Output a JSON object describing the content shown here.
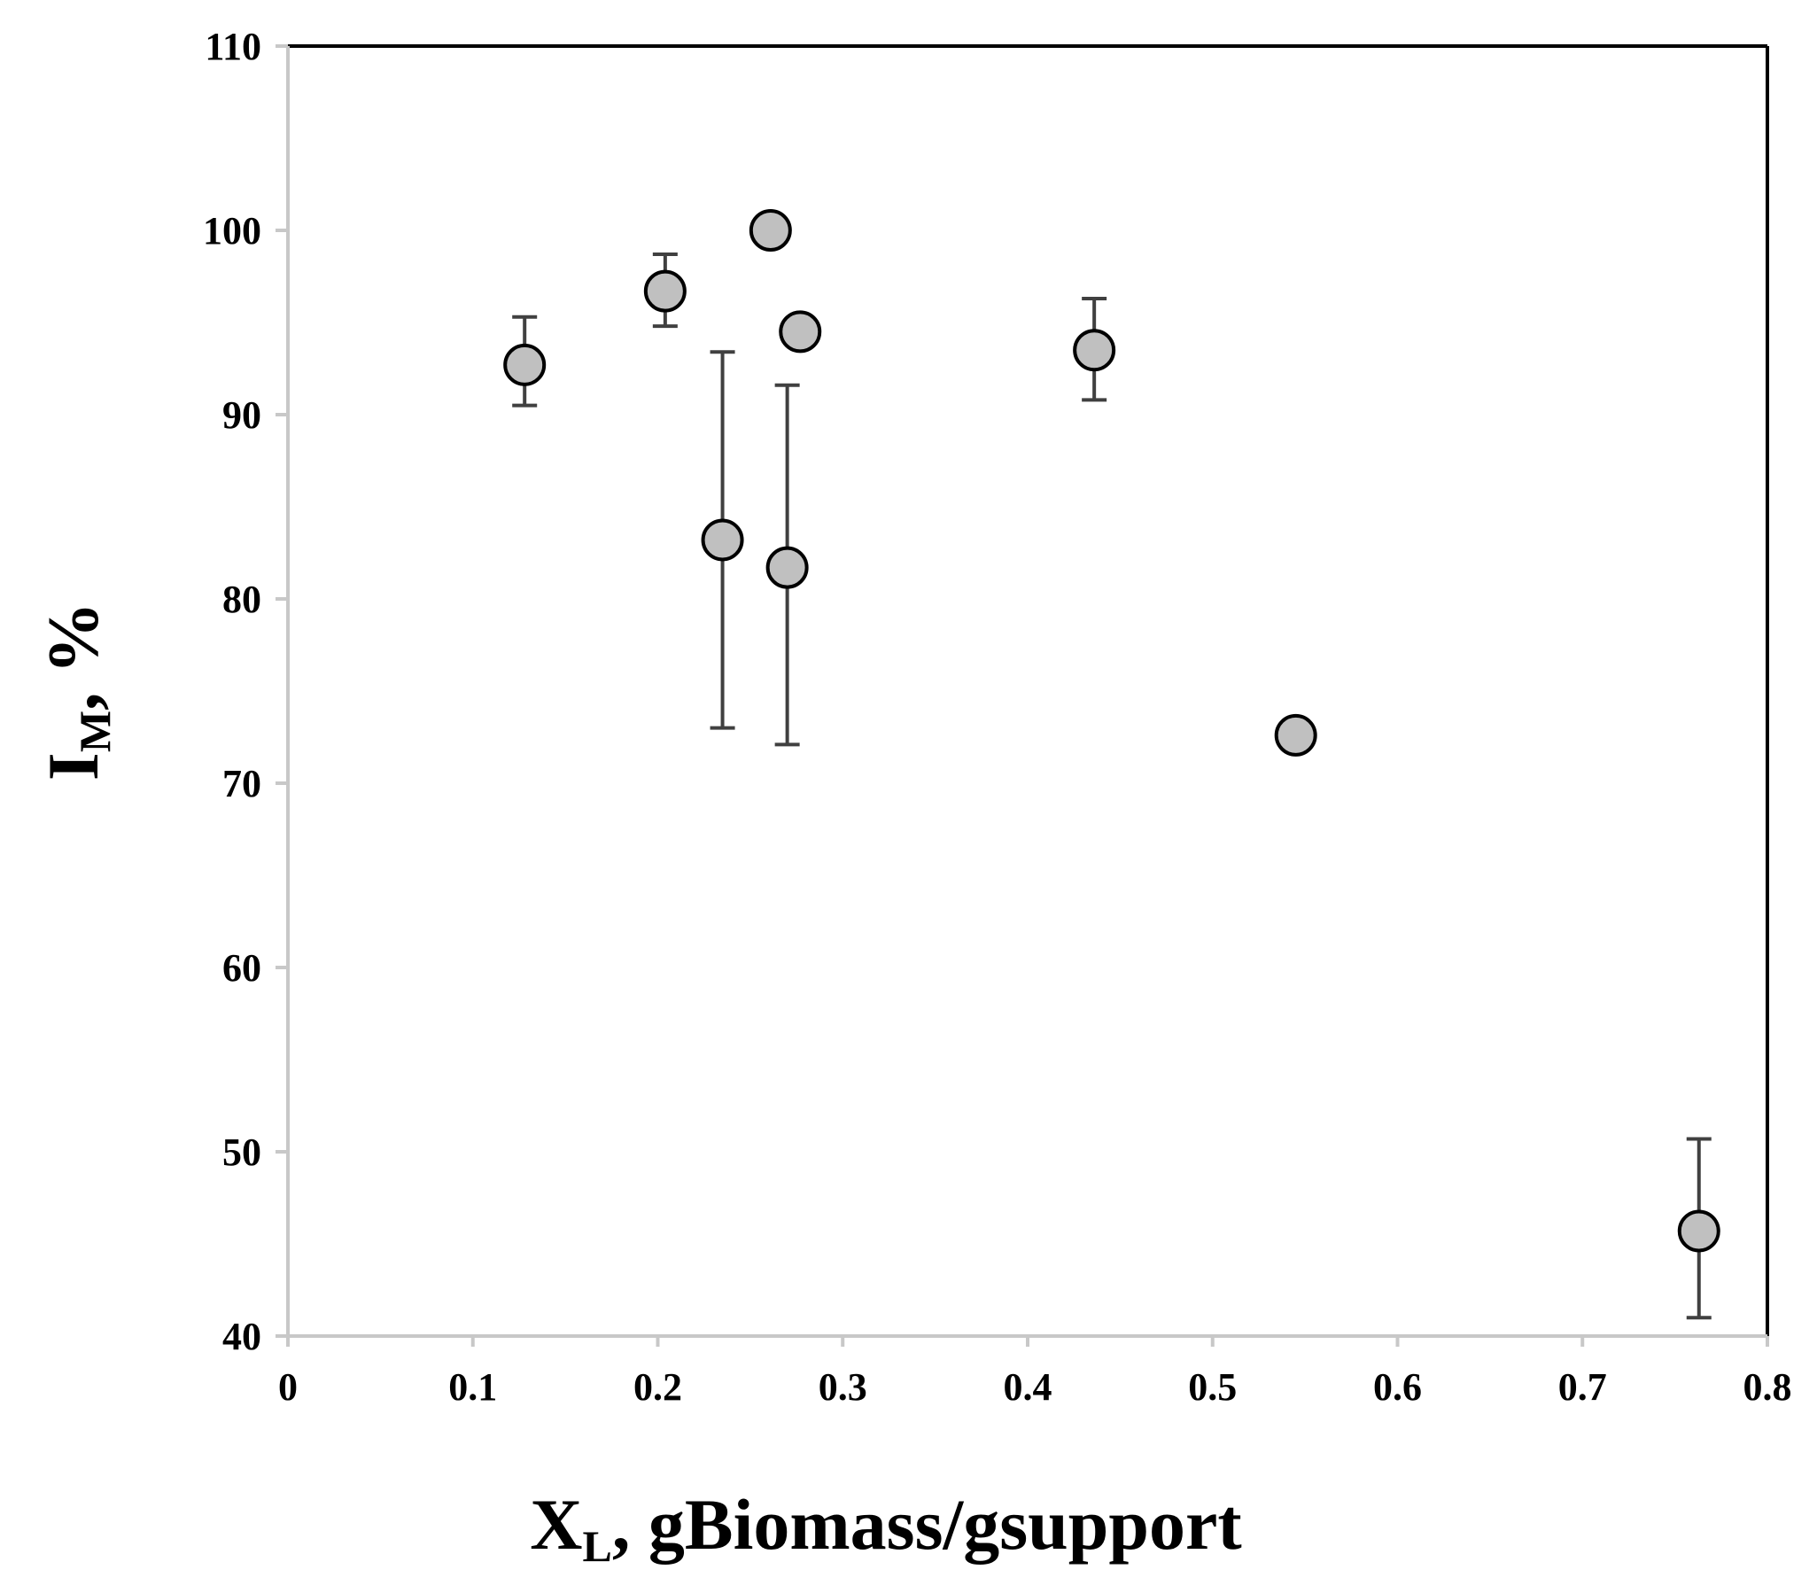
{
  "chart_data": {
    "type": "scatter",
    "xlabel": {
      "main": "X",
      "sub": "L",
      "rest": ", gBiomass/gsupport"
    },
    "ylabel": {
      "main": "I",
      "sub": "M",
      "rest": ", %"
    },
    "xlim": [
      0,
      0.8
    ],
    "ylim": [
      40,
      110
    ],
    "xticks": [
      "0",
      "0.1",
      "0.2",
      "0.3",
      "0.4",
      "0.5",
      "0.6",
      "0.7",
      "0.8"
    ],
    "yticks": [
      "40",
      "50",
      "60",
      "70",
      "80",
      "90",
      "100",
      "110"
    ],
    "grid": false,
    "legend": "none",
    "marker_fill": "#c0c0c0",
    "marker_stroke": "#000000",
    "errorbar_color": "#404040",
    "series": [
      {
        "points": [
          {
            "x": 0.128,
            "y": 92.7,
            "err_low": 90.5,
            "err_high": 95.3
          },
          {
            "x": 0.204,
            "y": 96.7,
            "err_low": 94.8,
            "err_high": 98.7
          },
          {
            "x": 0.235,
            "y": 83.2,
            "err_low": 73.0,
            "err_high": 93.4
          },
          {
            "x": 0.261,
            "y": 100.0
          },
          {
            "x": 0.27,
            "y": 81.7,
            "err_low": 72.1,
            "err_high": 91.6
          },
          {
            "x": 0.277,
            "y": 94.5
          },
          {
            "x": 0.436,
            "y": 93.5,
            "err_low": 90.8,
            "err_high": 96.3
          },
          {
            "x": 0.545,
            "y": 72.6
          },
          {
            "x": 0.763,
            "y": 45.7,
            "err_low": 41.0,
            "err_high": 50.7
          }
        ]
      }
    ]
  }
}
